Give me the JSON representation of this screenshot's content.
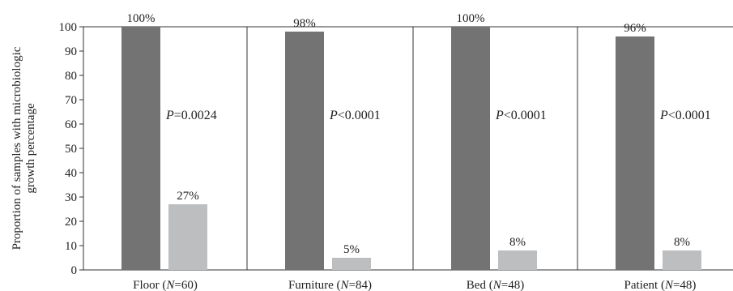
{
  "chart_data": {
    "type": "bar",
    "ylabel_lines": [
      "Proportion of samples with microbiologic",
      "growth percentage"
    ],
    "ylim": [
      0,
      100
    ],
    "yticks": [
      0,
      10,
      20,
      30,
      40,
      50,
      60,
      70,
      80,
      90,
      100
    ],
    "grid": false,
    "colors": {
      "dark": "#737373",
      "light": "#bdbec0",
      "frame": "#333333"
    },
    "categories": [
      {
        "name": "Floor",
        "n_prefix": "(",
        "n_italic": "N",
        "n_suffix": "=60)",
        "p_italic": "P",
        "p_text": "=0.0024"
      },
      {
        "name": "Furniture",
        "n_prefix": "(",
        "n_italic": "N",
        "n_suffix": "=84)",
        "p_italic": "P",
        "p_text": "<0.0001"
      },
      {
        "name": "Bed",
        "n_prefix": "(",
        "n_italic": "N",
        "n_suffix": "=48)",
        "p_italic": "P",
        "p_text": "<0.0001"
      },
      {
        "name": "Patient",
        "n_prefix": "(",
        "n_italic": "N",
        "n_suffix": "=48)",
        "p_italic": "P",
        "p_text": "<0.0001"
      }
    ],
    "series": [
      {
        "color_key": "dark",
        "values": [
          100,
          98,
          100,
          96
        ],
        "labels": [
          "100%",
          "98%",
          "100%",
          "96%"
        ]
      },
      {
        "color_key": "light",
        "values": [
          27,
          5,
          8,
          8
        ],
        "labels": [
          "27%",
          "5%",
          "8%",
          "8%"
        ]
      }
    ]
  }
}
